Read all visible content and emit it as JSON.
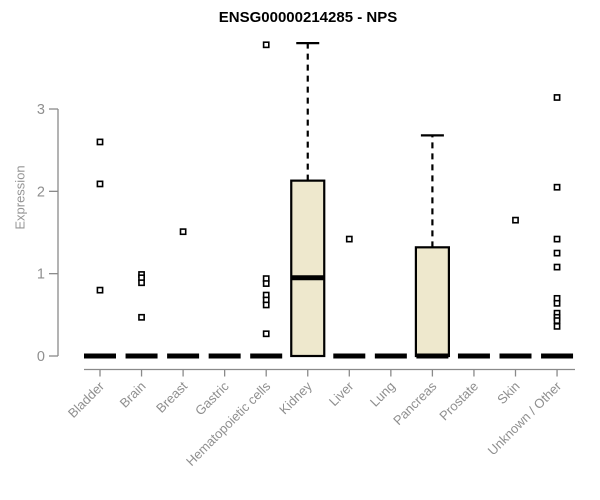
{
  "colors": {
    "background": "#ffffff",
    "box_fill": "#EEE8CD",
    "box_stroke": "#000000",
    "axis": "#8a8a8a",
    "tick_label": "#8f8f8f",
    "title": "#000000",
    "outlier_fill": "#ffffff"
  },
  "chart_data": {
    "type": "boxplot",
    "title": "ENSG00000214285 - NPS",
    "ylabel": "Expression",
    "xlabel": "",
    "ylim": [
      0,
      3.85
    ],
    "yticks": [
      0,
      1,
      2,
      3
    ],
    "grid": false,
    "legend": false,
    "categories": [
      "Bladder",
      "Brain",
      "Breast",
      "Gastric",
      "Hematopoietic cells",
      "Kidney",
      "Liver",
      "Lung",
      "Pancreas",
      "Prostate",
      "Skin",
      "Unknown / Other"
    ],
    "series": [
      {
        "label": "Bladder",
        "q1": 0,
        "median": 0,
        "q3": 0,
        "whisker_low": 0,
        "whisker_high": 0,
        "outliers": [
          2.6,
          2.09,
          0.8
        ]
      },
      {
        "label": "Brain",
        "q1": 0,
        "median": 0,
        "q3": 0,
        "whisker_low": 0,
        "whisker_high": 0,
        "outliers": [
          0.99,
          0.95,
          0.89,
          0.47
        ]
      },
      {
        "label": "Breast",
        "q1": 0,
        "median": 0,
        "q3": 0,
        "whisker_low": 0,
        "whisker_high": 0,
        "outliers": [
          1.51
        ]
      },
      {
        "label": "Gastric",
        "q1": 0,
        "median": 0,
        "q3": 0,
        "whisker_low": 0,
        "whisker_high": 0,
        "outliers": []
      },
      {
        "label": "Hematopoietic cells",
        "q1": 0,
        "median": 0,
        "q3": 0,
        "whisker_low": 0,
        "whisker_high": 0,
        "outliers": [
          3.78,
          0.94,
          0.88,
          0.74,
          0.68,
          0.62,
          0.27
        ]
      },
      {
        "label": "Kidney",
        "q1": 0,
        "median": 0.95,
        "q3": 2.13,
        "whisker_low": 0,
        "whisker_high": 3.8,
        "outliers": []
      },
      {
        "label": "Liver",
        "q1": 0,
        "median": 0,
        "q3": 0,
        "whisker_low": 0,
        "whisker_high": 0,
        "outliers": [
          1.42
        ]
      },
      {
        "label": "Lung",
        "q1": 0,
        "median": 0,
        "q3": 0,
        "whisker_low": 0,
        "whisker_high": 0,
        "outliers": []
      },
      {
        "label": "Pancreas",
        "q1": 0,
        "median": 0,
        "q3": 1.32,
        "whisker_low": 0,
        "whisker_high": 2.68,
        "outliers": []
      },
      {
        "label": "Prostate",
        "q1": 0,
        "median": 0,
        "q3": 0,
        "whisker_low": 0,
        "whisker_high": 0,
        "outliers": []
      },
      {
        "label": "Skin",
        "q1": 0,
        "median": 0,
        "q3": 0,
        "whisker_low": 0,
        "whisker_high": 0,
        "outliers": [
          1.65
        ]
      },
      {
        "label": "Unknown / Other",
        "q1": 0,
        "median": 0,
        "q3": 0,
        "whisker_low": 0,
        "whisker_high": 0,
        "outliers": [
          3.14,
          2.05,
          1.42,
          1.25,
          1.08,
          0.7,
          0.64,
          0.52,
          0.47,
          0.43,
          0.36
        ]
      }
    ]
  }
}
